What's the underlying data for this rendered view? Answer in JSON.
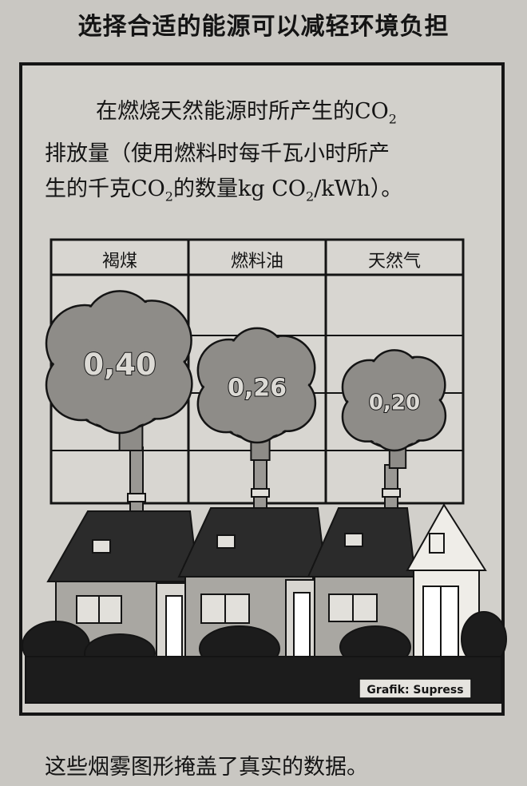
{
  "heading": "选择合适的能源可以减轻环境负担",
  "intro": {
    "line1_text": "在燃烧天然能源时所产生的CO",
    "line1_sub": "2",
    "line2": "排放量（使用燃料时每千瓦小时所产",
    "line3_a": "生的千克CO",
    "line3_sub1": "2",
    "line3_b": "的数量kg CO",
    "line3_sub2": "2",
    "line3_c": "/kWh）。"
  },
  "chart_data": {
    "type": "bar",
    "style": "pictograph (smoke clouds from house chimneys)",
    "title": "在燃烧天然能源时所产生的CO2排放量（使用燃料时每千瓦小时所产生的千克CO2的数量kg CO2/kWh）。",
    "unit": "kg CO2/kWh",
    "categories": [
      "褐煤",
      "燃料油",
      "天然气"
    ],
    "values": [
      0.4,
      0.26,
      0.2
    ],
    "value_labels": [
      "0,40",
      "0,26",
      "0,20"
    ]
  },
  "credit": "Grafik: Supress",
  "caption": "这些烟雾图形掩盖了真实的数据。",
  "colors": {
    "background": "#c9c7c2",
    "cloud": "#8e8c88",
    "ink": "#141414",
    "roof": "#2b2b2b",
    "brick": "#a9a7a2",
    "hedge": "#1c1c1c"
  }
}
